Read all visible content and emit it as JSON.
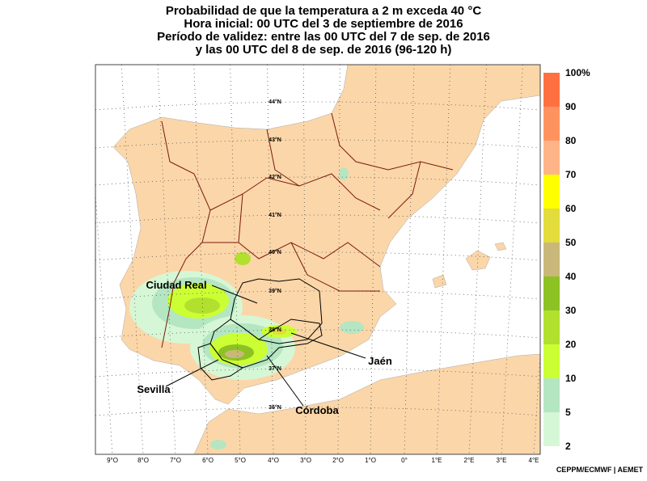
{
  "header": {
    "title_lines": [
      "Probabilidad de que la temperatura a 2 m exceda 40 °C",
      "Hora inicial: 00 UTC del 3 de septiembre de 2016",
      "Período de validez: entre las 00 UTC del 7 de sep. de 2016",
      "y las 00 UTC del 8 de sep. de 2016 (96-120 h)"
    ]
  },
  "map": {
    "latitude_labels": [
      "44°N",
      "43°N",
      "42°N",
      "41°N",
      "40°N",
      "39°N",
      "38°N",
      "37°N",
      "36°N"
    ],
    "longitude_labels": [
      "9°O",
      "8°O",
      "7°O",
      "6°O",
      "5°O",
      "4°O",
      "3°O",
      "2°O",
      "1°O",
      "0°",
      "1°E",
      "2°E",
      "3°E",
      "4°E"
    ],
    "cities": [
      "Ciudad Real",
      "Sevilla",
      "Córdoba",
      "Jaén"
    ]
  },
  "colorbar": {
    "labels": [
      "2",
      "5",
      "10",
      "20",
      "30",
      "40",
      "50",
      "60",
      "70",
      "80",
      "90",
      "100%"
    ],
    "colors": [
      "#d6f7d6",
      "#b4e6c2",
      "#ccff33",
      "#b2e02e",
      "#8cc224",
      "#c9b87a",
      "#e2dc3c",
      "#ffff00",
      "#ffb487",
      "#ff935f",
      "#ff7040"
    ]
  },
  "footer": {
    "credit": "CEPPM/ECMWF | AEMET"
  }
}
